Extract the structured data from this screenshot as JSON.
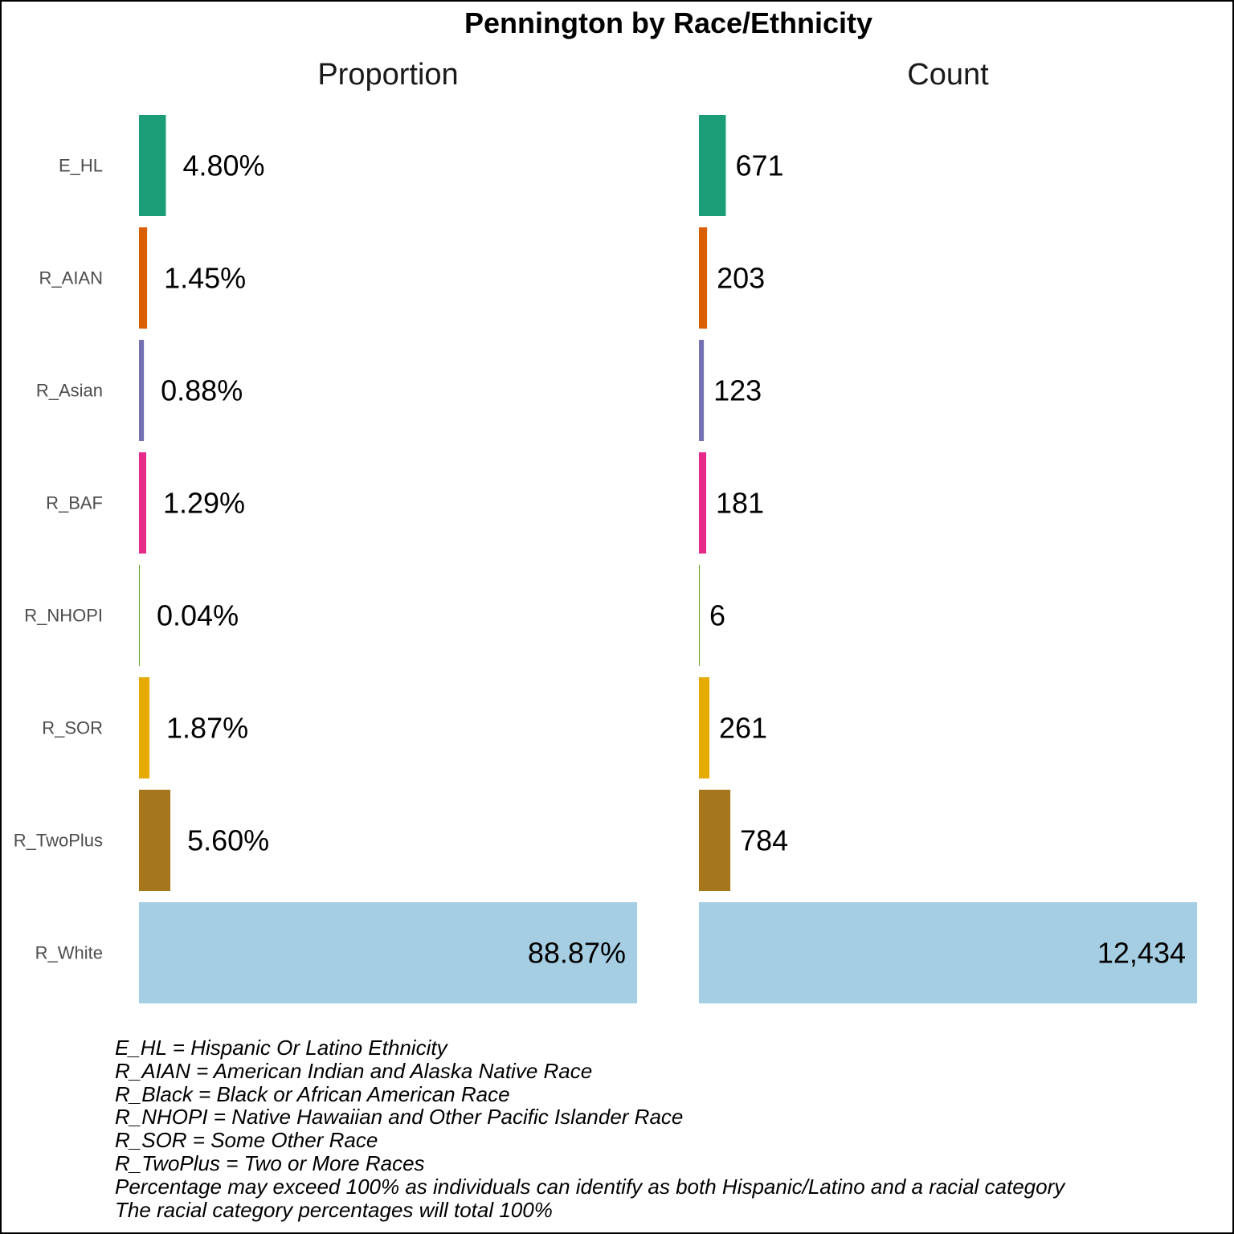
{
  "chart_data": {
    "type": "bar",
    "orientation": "horizontal",
    "title": "Pennington by Race/Ethnicity",
    "categories": [
      "E_HL",
      "R_AIAN",
      "R_Asian",
      "R_BAF",
      "R_NHOPI",
      "R_SOR",
      "R_TwoPlus",
      "R_White"
    ],
    "colors": [
      "#1b9e77",
      "#d95f02",
      "#7570b3",
      "#e7298a",
      "#66a61e",
      "#e6ab02",
      "#a6761d",
      "#a6cee3"
    ],
    "panels": [
      {
        "name": "Proportion",
        "values": [
          4.8,
          1.45,
          0.88,
          1.29,
          0.04,
          1.87,
          5.6,
          88.87
        ],
        "labels": [
          "4.80%",
          "1.45%",
          "0.88%",
          "1.29%",
          "0.04%",
          "1.87%",
          "5.60%",
          "88.87%"
        ]
      },
      {
        "name": "Count",
        "values": [
          671,
          203,
          123,
          181,
          6,
          261,
          784,
          12434
        ],
        "labels": [
          "671",
          "203",
          "123",
          "181",
          "6",
          "261",
          "784",
          "12,434"
        ]
      }
    ],
    "grid": false,
    "legend": "none"
  },
  "notes": [
    "E_HL = Hispanic Or Latino Ethnicity",
    "R_AIAN = American Indian and Alaska Native Race",
    "R_Black = Black or African American Race",
    "R_NHOPI = Native Hawaiian and Other Pacific Islander Race",
    "R_SOR = Some Other Race",
    "R_TwoPlus = Two or More Races",
    "Percentage may exceed 100% as individuals can identify as both Hispanic/Latino and a racial category",
    "The racial category percentages will total 100%"
  ]
}
